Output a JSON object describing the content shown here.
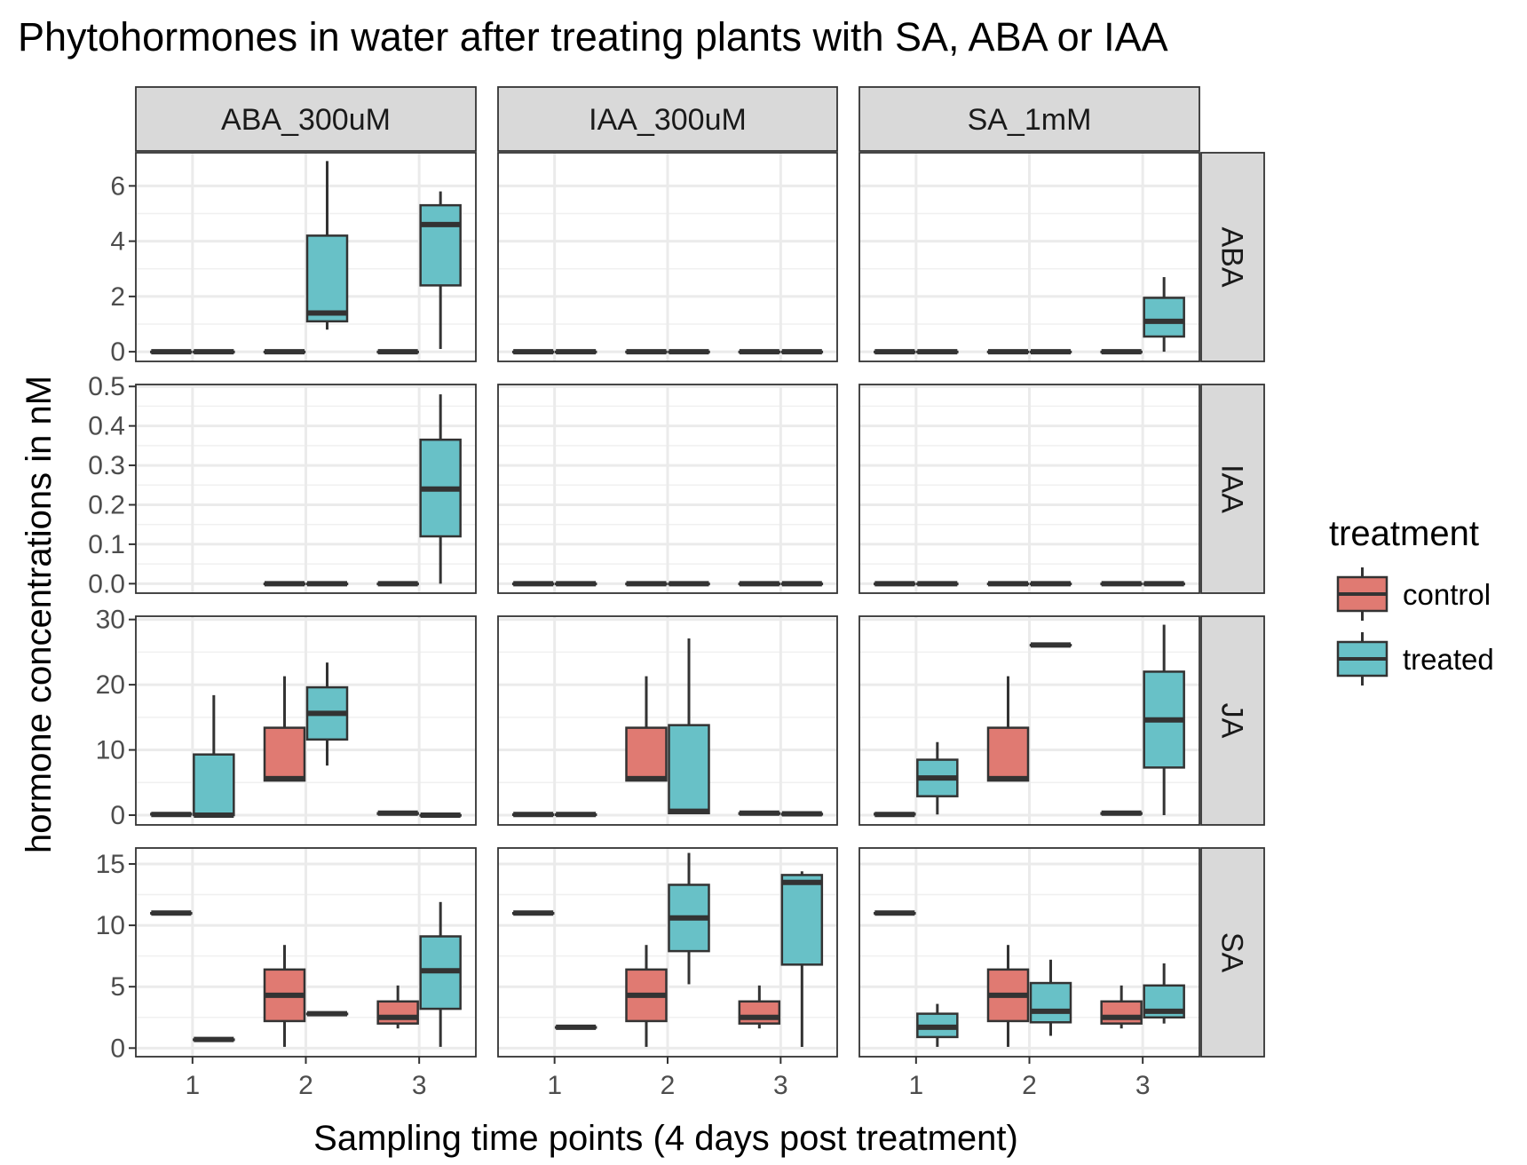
{
  "chart_data": {
    "type": "boxplot",
    "title": "Phytohormones in water after treating plants with SA, ABA or IAA",
    "xlabel": "Sampling time points (4 days post treatment)",
    "ylabel": "hormone concentrations in nM",
    "grid": true,
    "legend_position": "right",
    "facet_columns": [
      "ABA_300uM",
      "IAA_300uM",
      "SA_1mM"
    ],
    "facet_rows": [
      {
        "name": "ABA",
        "ylim": [
          -0.35,
          7.2
        ],
        "ticks": [
          {
            "v": 0,
            "label": "0"
          },
          {
            "v": 2,
            "label": "2"
          },
          {
            "v": 4,
            "label": "4"
          },
          {
            "v": 6,
            "label": "6"
          }
        ]
      },
      {
        "name": "IAA",
        "ylim": [
          -0.024,
          0.505
        ],
        "ticks": [
          {
            "v": 0,
            "label": "0.0"
          },
          {
            "v": 0.1,
            "label": "0.1"
          },
          {
            "v": 0.2,
            "label": "0.2"
          },
          {
            "v": 0.3,
            "label": "0.3"
          },
          {
            "v": 0.4,
            "label": "0.4"
          },
          {
            "v": 0.5,
            "label": "0.5"
          }
        ]
      },
      {
        "name": "JA",
        "ylim": [
          -1.5,
          30.5
        ],
        "ticks": [
          {
            "v": 0,
            "label": "0"
          },
          {
            "v": 10,
            "label": "10"
          },
          {
            "v": 20,
            "label": "20"
          },
          {
            "v": 30,
            "label": "30"
          }
        ]
      },
      {
        "name": "SA",
        "ylim": [
          -0.7,
          16.3
        ],
        "ticks": [
          {
            "v": 0,
            "label": "0"
          },
          {
            "v": 5,
            "label": "5"
          },
          {
            "v": 10,
            "label": "10"
          },
          {
            "v": 15,
            "label": "15"
          }
        ]
      }
    ],
    "x_categories": [
      "1",
      "2",
      "3"
    ],
    "legend": {
      "title": "treatment",
      "items": [
        {
          "name": "control",
          "color": "#E07A72"
        },
        {
          "name": "treated",
          "color": "#68C1C7"
        }
      ]
    },
    "boxes": [
      {
        "row": "ABA",
        "col": "ABA_300uM",
        "x": "1",
        "treatment": "control",
        "stats": [
          0,
          0,
          0,
          0,
          0
        ]
      },
      {
        "row": "ABA",
        "col": "ABA_300uM",
        "x": "1",
        "treatment": "treated",
        "stats": [
          0,
          0,
          0,
          0,
          0
        ]
      },
      {
        "row": "ABA",
        "col": "ABA_300uM",
        "x": "2",
        "treatment": "control",
        "stats": [
          0,
          0,
          0,
          0,
          0
        ]
      },
      {
        "row": "ABA",
        "col": "ABA_300uM",
        "x": "2",
        "treatment": "treated",
        "stats": [
          0.8,
          1.1,
          1.4,
          4.2,
          6.9
        ]
      },
      {
        "row": "ABA",
        "col": "ABA_300uM",
        "x": "3",
        "treatment": "control",
        "stats": [
          0,
          0,
          0,
          0,
          0
        ]
      },
      {
        "row": "ABA",
        "col": "ABA_300uM",
        "x": "3",
        "treatment": "treated",
        "stats": [
          0.1,
          2.4,
          4.6,
          5.3,
          5.8
        ]
      },
      {
        "row": "ABA",
        "col": "IAA_300uM",
        "x": "1",
        "treatment": "control",
        "stats": [
          0,
          0,
          0,
          0,
          0
        ]
      },
      {
        "row": "ABA",
        "col": "IAA_300uM",
        "x": "1",
        "treatment": "treated",
        "stats": [
          0,
          0,
          0,
          0,
          0
        ]
      },
      {
        "row": "ABA",
        "col": "IAA_300uM",
        "x": "2",
        "treatment": "control",
        "stats": [
          0,
          0,
          0,
          0,
          0
        ]
      },
      {
        "row": "ABA",
        "col": "IAA_300uM",
        "x": "2",
        "treatment": "treated",
        "stats": [
          0,
          0,
          0,
          0,
          0
        ]
      },
      {
        "row": "ABA",
        "col": "IAA_300uM",
        "x": "3",
        "treatment": "control",
        "stats": [
          0,
          0,
          0,
          0,
          0
        ]
      },
      {
        "row": "ABA",
        "col": "IAA_300uM",
        "x": "3",
        "treatment": "treated",
        "stats": [
          0,
          0,
          0,
          0,
          0
        ]
      },
      {
        "row": "ABA",
        "col": "SA_1mM",
        "x": "1",
        "treatment": "control",
        "stats": [
          0,
          0,
          0,
          0,
          0
        ]
      },
      {
        "row": "ABA",
        "col": "SA_1mM",
        "x": "1",
        "treatment": "treated",
        "stats": [
          0,
          0,
          0,
          0,
          0
        ]
      },
      {
        "row": "ABA",
        "col": "SA_1mM",
        "x": "2",
        "treatment": "control",
        "stats": [
          0,
          0,
          0,
          0,
          0
        ]
      },
      {
        "row": "ABA",
        "col": "SA_1mM",
        "x": "2",
        "treatment": "treated",
        "stats": [
          0,
          0,
          0,
          0,
          0
        ]
      },
      {
        "row": "ABA",
        "col": "SA_1mM",
        "x": "3",
        "treatment": "control",
        "stats": [
          0,
          0,
          0,
          0,
          0
        ]
      },
      {
        "row": "ABA",
        "col": "SA_1mM",
        "x": "3",
        "treatment": "treated",
        "stats": [
          0,
          0.55,
          1.1,
          1.95,
          2.7
        ]
      },
      {
        "row": "IAA",
        "col": "ABA_300uM",
        "x": "2",
        "treatment": "control",
        "stats": [
          0,
          0,
          0,
          0,
          0
        ]
      },
      {
        "row": "IAA",
        "col": "ABA_300uM",
        "x": "2",
        "treatment": "treated",
        "stats": [
          0,
          0,
          0,
          0,
          0
        ]
      },
      {
        "row": "IAA",
        "col": "ABA_300uM",
        "x": "3",
        "treatment": "control",
        "stats": [
          0,
          0,
          0,
          0,
          0
        ]
      },
      {
        "row": "IAA",
        "col": "ABA_300uM",
        "x": "3",
        "treatment": "treated",
        "stats": [
          0,
          0.12,
          0.24,
          0.365,
          0.48
        ]
      },
      {
        "row": "IAA",
        "col": "IAA_300uM",
        "x": "1",
        "treatment": "control",
        "stats": [
          0,
          0,
          0,
          0,
          0
        ]
      },
      {
        "row": "IAA",
        "col": "IAA_300uM",
        "x": "1",
        "treatment": "treated",
        "stats": [
          0,
          0,
          0,
          0,
          0
        ]
      },
      {
        "row": "IAA",
        "col": "IAA_300uM",
        "x": "2",
        "treatment": "control",
        "stats": [
          0,
          0,
          0,
          0,
          0
        ]
      },
      {
        "row": "IAA",
        "col": "IAA_300uM",
        "x": "2",
        "treatment": "treated",
        "stats": [
          0,
          0,
          0,
          0,
          0
        ]
      },
      {
        "row": "IAA",
        "col": "IAA_300uM",
        "x": "3",
        "treatment": "control",
        "stats": [
          0,
          0,
          0,
          0,
          0
        ]
      },
      {
        "row": "IAA",
        "col": "IAA_300uM",
        "x": "3",
        "treatment": "treated",
        "stats": [
          0,
          0,
          0,
          0,
          0
        ]
      },
      {
        "row": "IAA",
        "col": "SA_1mM",
        "x": "1",
        "treatment": "control",
        "stats": [
          0,
          0,
          0,
          0,
          0
        ]
      },
      {
        "row": "IAA",
        "col": "SA_1mM",
        "x": "1",
        "treatment": "treated",
        "stats": [
          0,
          0,
          0,
          0,
          0
        ]
      },
      {
        "row": "IAA",
        "col": "SA_1mM",
        "x": "2",
        "treatment": "control",
        "stats": [
          0,
          0,
          0,
          0,
          0
        ]
      },
      {
        "row": "IAA",
        "col": "SA_1mM",
        "x": "2",
        "treatment": "treated",
        "stats": [
          0,
          0,
          0,
          0,
          0
        ]
      },
      {
        "row": "IAA",
        "col": "SA_1mM",
        "x": "3",
        "treatment": "control",
        "stats": [
          0,
          0,
          0,
          0,
          0
        ]
      },
      {
        "row": "IAA",
        "col": "SA_1mM",
        "x": "3",
        "treatment": "treated",
        "stats": [
          0,
          0,
          0,
          0,
          0
        ]
      },
      {
        "row": "JA",
        "col": "ABA_300uM",
        "x": "1",
        "treatment": "control",
        "stats": [
          0.1,
          0.1,
          0.1,
          0.2,
          0.2
        ]
      },
      {
        "row": "JA",
        "col": "ABA_300uM",
        "x": "1",
        "treatment": "treated",
        "stats": [
          0,
          0,
          0,
          9.3,
          18.4
        ]
      },
      {
        "row": "JA",
        "col": "ABA_300uM",
        "x": "2",
        "treatment": "control",
        "stats": [
          5.3,
          5.3,
          5.6,
          13.4,
          21.3
        ]
      },
      {
        "row": "JA",
        "col": "ABA_300uM",
        "x": "2",
        "treatment": "treated",
        "stats": [
          7.6,
          11.6,
          15.6,
          19.6,
          23.4
        ]
      },
      {
        "row": "JA",
        "col": "ABA_300uM",
        "x": "3",
        "treatment": "control",
        "stats": [
          0.1,
          0.2,
          0.3,
          0.3,
          0.4
        ]
      },
      {
        "row": "JA",
        "col": "ABA_300uM",
        "x": "3",
        "treatment": "treated",
        "stats": [
          0,
          0,
          0,
          0,
          0
        ]
      },
      {
        "row": "JA",
        "col": "IAA_300uM",
        "x": "1",
        "treatment": "control",
        "stats": [
          0.1,
          0.1,
          0.1,
          0.1,
          0.1
        ]
      },
      {
        "row": "JA",
        "col": "IAA_300uM",
        "x": "1",
        "treatment": "treated",
        "stats": [
          0.1,
          0.1,
          0.1,
          0.1,
          0.1
        ]
      },
      {
        "row": "JA",
        "col": "IAA_300uM",
        "x": "2",
        "treatment": "control",
        "stats": [
          5.3,
          5.3,
          5.6,
          13.4,
          21.3
        ]
      },
      {
        "row": "JA",
        "col": "IAA_300uM",
        "x": "2",
        "treatment": "treated",
        "stats": [
          0.3,
          0.3,
          0.6,
          13.8,
          27.1
        ]
      },
      {
        "row": "JA",
        "col": "IAA_300uM",
        "x": "3",
        "treatment": "control",
        "stats": [
          0.1,
          0.2,
          0.3,
          0.3,
          0.4
        ]
      },
      {
        "row": "JA",
        "col": "IAA_300uM",
        "x": "3",
        "treatment": "treated",
        "stats": [
          0.1,
          0.1,
          0.2,
          0.2,
          0.2
        ]
      },
      {
        "row": "JA",
        "col": "SA_1mM",
        "x": "1",
        "treatment": "control",
        "stats": [
          0.1,
          0.1,
          0.1,
          0.2,
          0.2
        ]
      },
      {
        "row": "JA",
        "col": "SA_1mM",
        "x": "1",
        "treatment": "treated",
        "stats": [
          0.1,
          2.9,
          5.7,
          8.5,
          11.2
        ]
      },
      {
        "row": "JA",
        "col": "SA_1mM",
        "x": "2",
        "treatment": "control",
        "stats": [
          5.3,
          5.3,
          5.6,
          13.4,
          21.3
        ]
      },
      {
        "row": "JA",
        "col": "SA_1mM",
        "x": "2",
        "treatment": "treated",
        "stats": [
          26.1,
          26.1,
          26.1,
          26.1,
          26.1
        ]
      },
      {
        "row": "JA",
        "col": "SA_1mM",
        "x": "3",
        "treatment": "control",
        "stats": [
          0.1,
          0.2,
          0.3,
          0.3,
          0.4
        ]
      },
      {
        "row": "JA",
        "col": "SA_1mM",
        "x": "3",
        "treatment": "treated",
        "stats": [
          0,
          7.3,
          14.6,
          22.0,
          29.2
        ]
      },
      {
        "row": "SA",
        "col": "ABA_300uM",
        "x": "1",
        "treatment": "control",
        "stats": [
          11.0,
          11.0,
          11.0,
          11.0,
          11.0
        ]
      },
      {
        "row": "SA",
        "col": "ABA_300uM",
        "x": "1",
        "treatment": "treated",
        "stats": [
          0.7,
          0.7,
          0.7,
          0.7,
          0.7
        ]
      },
      {
        "row": "SA",
        "col": "ABA_300uM",
        "x": "2",
        "treatment": "control",
        "stats": [
          0.1,
          2.2,
          4.3,
          6.4,
          8.4
        ]
      },
      {
        "row": "SA",
        "col": "ABA_300uM",
        "x": "2",
        "treatment": "treated",
        "stats": [
          2.8,
          2.8,
          2.8,
          2.8,
          2.8
        ]
      },
      {
        "row": "SA",
        "col": "ABA_300uM",
        "x": "3",
        "treatment": "control",
        "stats": [
          1.6,
          2.0,
          2.5,
          3.8,
          5.1
        ]
      },
      {
        "row": "SA",
        "col": "ABA_300uM",
        "x": "3",
        "treatment": "treated",
        "stats": [
          0.1,
          3.2,
          6.3,
          9.1,
          11.9
        ]
      },
      {
        "row": "SA",
        "col": "IAA_300uM",
        "x": "1",
        "treatment": "control",
        "stats": [
          11.0,
          11.0,
          11.0,
          11.0,
          11.0
        ]
      },
      {
        "row": "SA",
        "col": "IAA_300uM",
        "x": "1",
        "treatment": "treated",
        "stats": [
          1.7,
          1.7,
          1.7,
          1.7,
          1.7
        ]
      },
      {
        "row": "SA",
        "col": "IAA_300uM",
        "x": "2",
        "treatment": "control",
        "stats": [
          0.1,
          2.2,
          4.3,
          6.4,
          8.4
        ]
      },
      {
        "row": "SA",
        "col": "IAA_300uM",
        "x": "2",
        "treatment": "treated",
        "stats": [
          5.2,
          7.9,
          10.6,
          13.3,
          15.9
        ]
      },
      {
        "row": "SA",
        "col": "IAA_300uM",
        "x": "3",
        "treatment": "control",
        "stats": [
          1.6,
          2.0,
          2.5,
          3.8,
          5.1
        ]
      },
      {
        "row": "SA",
        "col": "IAA_300uM",
        "x": "3",
        "treatment": "treated",
        "stats": [
          0.1,
          6.8,
          13.5,
          14.1,
          14.4
        ]
      },
      {
        "row": "SA",
        "col": "SA_1mM",
        "x": "1",
        "treatment": "control",
        "stats": [
          11.0,
          11.0,
          11.0,
          11.0,
          11.0
        ]
      },
      {
        "row": "SA",
        "col": "SA_1mM",
        "x": "1",
        "treatment": "treated",
        "stats": [
          0.1,
          0.9,
          1.7,
          2.8,
          3.6
        ]
      },
      {
        "row": "SA",
        "col": "SA_1mM",
        "x": "2",
        "treatment": "control",
        "stats": [
          0.1,
          2.2,
          4.3,
          6.4,
          8.4
        ]
      },
      {
        "row": "SA",
        "col": "SA_1mM",
        "x": "2",
        "treatment": "treated",
        "stats": [
          1.0,
          2.1,
          3.0,
          5.3,
          7.2
        ]
      },
      {
        "row": "SA",
        "col": "SA_1mM",
        "x": "3",
        "treatment": "control",
        "stats": [
          1.6,
          2.0,
          2.5,
          3.8,
          5.1
        ]
      },
      {
        "row": "SA",
        "col": "SA_1mM",
        "x": "3",
        "treatment": "treated",
        "stats": [
          2.0,
          2.5,
          3.0,
          5.1,
          6.9
        ]
      }
    ]
  }
}
